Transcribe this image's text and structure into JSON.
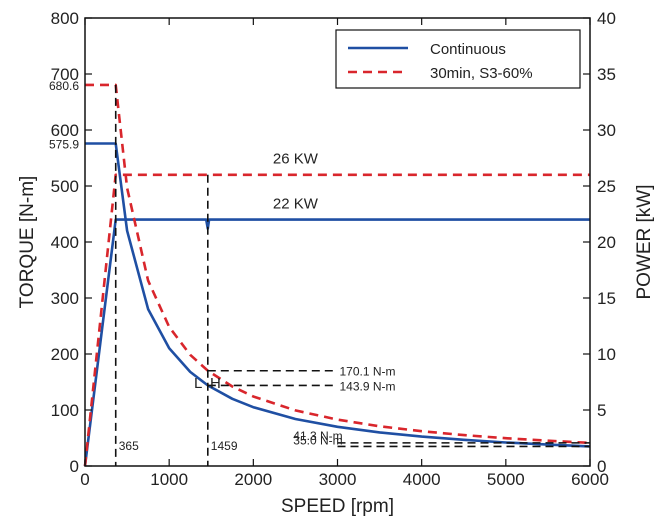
{
  "chart_data": {
    "type": "line",
    "xlabel": "SPEED [rpm]",
    "ylabel_left": "TORQUE [N-m]",
    "ylabel_right": "POWER [kW]",
    "xlim": [
      0,
      6000
    ],
    "ylim_left": [
      0,
      800
    ],
    "ylim_right": [
      0,
      40
    ],
    "x_ticks": [
      "0",
      "1000",
      "2000",
      "3000",
      "4000",
      "5000",
      "6000"
    ],
    "y_left_ticks": [
      "0",
      "100",
      "200",
      "300",
      "400",
      "500",
      "600",
      "700",
      "800"
    ],
    "y_right_ticks": [
      "0",
      "5",
      "10",
      "15",
      "20",
      "25",
      "30",
      "35",
      "40"
    ],
    "grid": false,
    "legend_position": "top-right",
    "colors": {
      "continuous": "#1f4fa3",
      "s3": "#d9262c"
    },
    "series": [
      {
        "name": "Continuous",
        "axis": "left",
        "kind": "torque",
        "style": "solid",
        "color": "#1f4fa3",
        "x": [
          0,
          365,
          500,
          750,
          1000,
          1250,
          1459,
          1750,
          2000,
          2500,
          3000,
          3500,
          4000,
          4500,
          5000,
          5500,
          6000
        ],
        "y": [
          575.9,
          575.9,
          420.2,
          280.1,
          210.1,
          168.1,
          143.9,
          120.0,
          105.0,
          84.0,
          70.0,
          60.0,
          52.5,
          46.7,
          42.0,
          38.2,
          35.0
        ]
      },
      {
        "name": "Continuous power",
        "axis": "right",
        "kind": "power",
        "style": "solid",
        "color": "#1f4fa3",
        "x": [
          0,
          365,
          1440,
          1459,
          1475,
          6000
        ],
        "y": [
          0,
          22,
          22,
          21.2,
          22,
          22
        ]
      },
      {
        "name": "30min, S3-60%",
        "axis": "left",
        "kind": "torque",
        "style": "dashed",
        "color": "#d9262c",
        "x": [
          0,
          365,
          500,
          750,
          1000,
          1250,
          1459,
          1750,
          2000,
          2500,
          3000,
          3500,
          4000,
          4500,
          5000,
          5500,
          6000
        ],
        "y": [
          680.6,
          680.6,
          496.6,
          331.0,
          248.3,
          198.6,
          170.1,
          141.9,
          124.1,
          99.3,
          82.8,
          70.9,
          62.1,
          55.2,
          49.7,
          45.1,
          41.3
        ]
      },
      {
        "name": "S3 power",
        "axis": "right",
        "kind": "power",
        "style": "dashed",
        "color": "#d9262c",
        "x": [
          0,
          365,
          6000
        ],
        "y": [
          0,
          26,
          26
        ]
      }
    ],
    "legend": [
      {
        "label": "Continuous",
        "style": "solid",
        "color": "#1f4fa3"
      },
      {
        "label": "30min, S3-60%",
        "style": "dashed",
        "color": "#d9262c"
      }
    ],
    "annotations": {
      "torque_left_labels": [
        {
          "text": "680.6",
          "value": 680.6
        },
        {
          "text": "575.9",
          "value": 575.9
        }
      ],
      "power_labels": [
        {
          "text": "26 KW",
          "x": 2500,
          "y_left": 540
        },
        {
          "text": "22 KW",
          "x": 2500,
          "y_left": 460
        }
      ],
      "vertical_markers": [
        {
          "x": 365,
          "top_left": 680.6,
          "text": "365"
        },
        {
          "x": 1459,
          "top_left": 520,
          "text": "1459"
        }
      ],
      "region_labels": [
        {
          "text": "L",
          "x": 1345,
          "y_left": 100
        },
        {
          "text": "H",
          "x": 1550,
          "y_left": 100
        }
      ],
      "torque_points": [
        {
          "text": "170.1 N-m",
          "x_from": 1459,
          "x_to": 3000,
          "y": 170.1
        },
        {
          "text": "143.9 N-m",
          "x_from": 1459,
          "x_to": 3000,
          "y": 143.9
        },
        {
          "text": "41.3 N-m",
          "x_from": 3000,
          "x_to": 6000,
          "y": 41.3
        },
        {
          "text": "35.0 N-m",
          "x_from": 3000,
          "x_to": 6000,
          "y": 35.0
        }
      ]
    }
  }
}
